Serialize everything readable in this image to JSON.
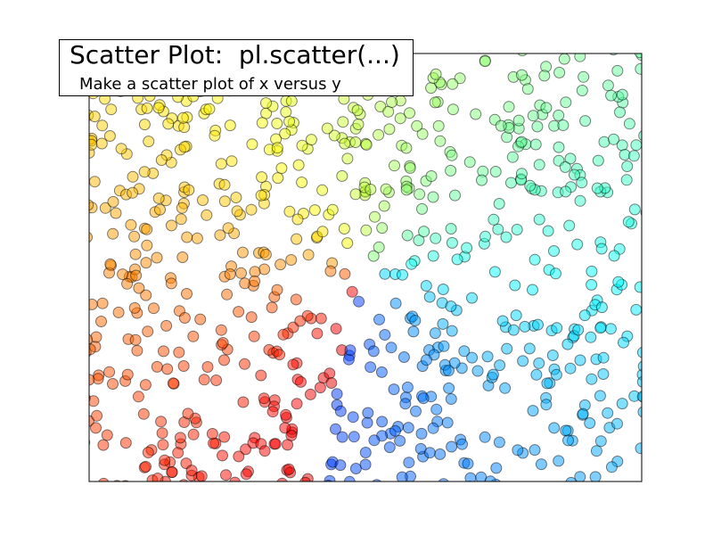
{
  "chart_data": {
    "type": "scatter",
    "title": "Scatter Plot:  pl.scatter(...)",
    "subtitle": "Make a scatter plot of x versus y",
    "xlabel": "",
    "ylabel": "",
    "xlim": [
      0,
      1
    ],
    "ylim": [
      0,
      1
    ],
    "grid": false,
    "ticks_visible": false,
    "marker": "circle",
    "marker_alpha": 0.5,
    "marker_edge_color": "#000000",
    "colormap": "jet",
    "colormap_stops": [
      "#00007f",
      "#0000ff",
      "#007fff",
      "#00ffff",
      "#7fff7f",
      "#ffff00",
      "#ff7f00",
      "#ff0000",
      "#7f0000"
    ],
    "color_rule": "color value derived from atan2(y - 0.5, x - 0.5): blue below-left, cyan below-right, green/yellow upper-right, red upper-left",
    "point_count": 800,
    "distribution": "approximately uniform over the unit square, centered near (0.5, 0.5)"
  }
}
